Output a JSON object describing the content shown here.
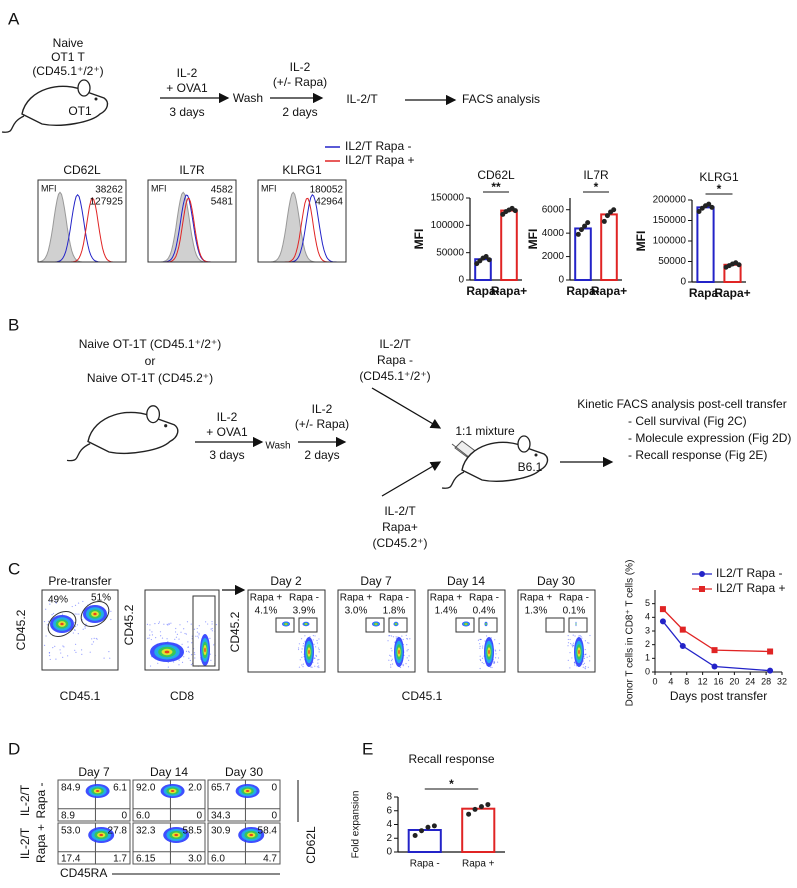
{
  "panel_labels": [
    "A",
    "B",
    "C",
    "D",
    "E"
  ],
  "a": {
    "mouse_caption": [
      "Naive",
      "OT1 T",
      "(CD45.1⁺/2⁺)"
    ],
    "mouse_name": "OT1",
    "culture": [
      "IL-2",
      "+ OVA1"
    ],
    "culture_time": "3 days",
    "wash": "Wash",
    "rest": [
      "IL-2",
      "(+/- Rapa)"
    ],
    "rest_time": "2 days",
    "product": "IL-2/T",
    "readout": "FACS analysis",
    "legend": [
      {
        "name": "IL2/T Rapa -",
        "color": "#2323c8"
      },
      {
        "name": "IL2/T Rapa +",
        "color": "#e02424"
      }
    ],
    "histograms": [
      {
        "marker": "CD62L",
        "mfi_label": "MFI",
        "mfi": [
          "38262",
          "127925"
        ]
      },
      {
        "marker": "IL7R",
        "mfi_label": "MFI",
        "mfi": [
          "4582",
          "5481"
        ]
      },
      {
        "marker": "KLRG1",
        "mfi_label": "MFI",
        "mfi": [
          "180052",
          "42964"
        ]
      }
    ]
  },
  "b": {
    "donors": [
      "Naive OT-1T (CD45.1⁺/2⁺)",
      "or",
      "Naive OT-1T (CD45.2⁺)"
    ],
    "culture": [
      "IL-2",
      "+ OVA1"
    ],
    "culture_time": "3 days",
    "wash": "Wash",
    "rest": [
      "IL-2",
      "(+/- Rapa)"
    ],
    "rest_time": "2 days",
    "group_minus": [
      "IL-2/T",
      "Rapa -",
      "(CD45.1⁺/2⁺)"
    ],
    "group_plus": [
      "IL-2/T",
      "Rapa+",
      "(CD45.2⁺)"
    ],
    "mixture": "1:1 mixture",
    "host": "B6.1",
    "analysis_title": "Kinetic FACS analysis post-cell transfer",
    "analysis_items": [
      "- Cell survival (Fig 2C)",
      "- Molecule expression (Fig 2D)",
      "- Recall response (Fig 2E)"
    ]
  },
  "c": {
    "pre_transfer": {
      "title": "Pre-transfer",
      "gates": [
        "49%",
        "51%"
      ],
      "y_label": "CD45.2",
      "x_label": "CD45.1"
    },
    "cd8_plot": {
      "y_label": "CD45.2",
      "x_label": "CD8"
    },
    "days": [
      {
        "title": "Day 2",
        "gates": [
          "4.1%",
          "3.9%"
        ]
      },
      {
        "title": "Day 7",
        "gates": [
          "3.0%",
          "1.8%"
        ]
      },
      {
        "title": "Day 14",
        "gates": [
          "1.4%",
          "0.4%"
        ]
      },
      {
        "title": "Day 30",
        "gates": [
          "1.3%",
          "0.1%"
        ]
      }
    ],
    "gate_names": [
      {
        "name": "Rapa +",
        "color": "#e02424"
      },
      {
        "name": "Rapa -",
        "color": "#2323c8"
      }
    ],
    "y_label": "CD45.2",
    "x_label": "CD45.1"
  },
  "d": {
    "days": [
      "Day 7",
      "Day 14",
      "Day 30"
    ],
    "rows": [
      {
        "label": "IL-2/T",
        "group": "Rapa -",
        "color": "#2323c8",
        "quadrants": [
          [
            "84.9",
            "6.1",
            "8.9",
            "0"
          ],
          [
            "92.0",
            "2.0",
            "6.0",
            "0"
          ],
          [
            "65.7",
            "0",
            "34.3",
            "0"
          ]
        ]
      },
      {
        "label": "IL-2/T",
        "group": "Rapa +",
        "color": "#e02424",
        "quadrants": [
          [
            "53.0",
            "27.8",
            "17.4",
            "1.7"
          ],
          [
            "32.3",
            "58.5",
            "6.15",
            "3.0"
          ],
          [
            "30.9",
            "58.4",
            "6.0",
            "4.7"
          ]
        ]
      }
    ],
    "y_label": "CD62L",
    "x_label": "CD45RA"
  },
  "chart_data": [
    {
      "type": "bar",
      "title": "CD62L",
      "y_label": "MFI",
      "categories": [
        "Rapa-",
        "Rapa+"
      ],
      "values": [
        38000,
        127000
      ],
      "points": [
        [
          30000,
          35000,
          40000,
          43000,
          37000
        ],
        [
          120000,
          125000,
          128000,
          131000,
          127000
        ]
      ],
      "colors": [
        "#2323c8",
        "#e02424"
      ],
      "ylim": [
        0,
        150000
      ],
      "yticks": [
        0,
        50000,
        100000,
        150000
      ],
      "significance": "**"
    },
    {
      "type": "bar",
      "title": "IL7R",
      "y_label": "MFI",
      "categories": [
        "Rapa-",
        "Rapa+"
      ],
      "values": [
        4400,
        5600
      ],
      "points": [
        [
          3900,
          4300,
          4600,
          4900
        ],
        [
          5000,
          5500,
          5800,
          6000
        ]
      ],
      "colors": [
        "#2323c8",
        "#e02424"
      ],
      "ylim": [
        0,
        7000
      ],
      "yticks": [
        0,
        2000,
        4000,
        6000
      ],
      "significance": "*"
    },
    {
      "type": "bar",
      "title": "KLRG1",
      "y_label": "MFI",
      "categories": [
        "Rapa-",
        "Rapa+"
      ],
      "values": [
        182000,
        42000
      ],
      "points": [
        [
          172000,
          180000,
          186000,
          190000,
          182000
        ],
        [
          36000,
          40000,
          44000,
          47000,
          42000
        ]
      ],
      "colors": [
        "#2323c8",
        "#e02424"
      ],
      "ylim": [
        0,
        200000
      ],
      "yticks": [
        0,
        50000,
        100000,
        150000,
        200000
      ],
      "significance": "*"
    },
    {
      "type": "line",
      "x_label": "Days post transfer",
      "y_label": "Donor T cells in CD8⁺ T cells (%)",
      "x": [
        2,
        7,
        15,
        29
      ],
      "xlim": [
        0,
        32
      ],
      "xticks": [
        0,
        4,
        8,
        12,
        16,
        20,
        24,
        28,
        32
      ],
      "ylim": [
        0,
        6
      ],
      "yticks": [
        0,
        1,
        2,
        3,
        4,
        5
      ],
      "series": [
        {
          "name": "IL2/T Rapa -",
          "color": "#2323c8",
          "marker": "circle",
          "values": [
            3.7,
            1.9,
            0.4,
            0.1
          ]
        },
        {
          "name": "IL2/T Rapa +",
          "color": "#e02424",
          "marker": "square",
          "values": [
            4.6,
            3.1,
            1.6,
            1.5
          ]
        }
      ]
    },
    {
      "type": "bar",
      "title": "Recall response",
      "y_label": "Fold expansion",
      "categories": [
        "Rapa -",
        "Rapa +"
      ],
      "values": [
        3.2,
        6.3
      ],
      "points": [
        [
          2.4,
          3.1,
          3.6,
          3.8
        ],
        [
          5.5,
          6.2,
          6.6,
          6.9
        ]
      ],
      "colors": [
        "#2323c8",
        "#e02424"
      ],
      "ylim": [
        0,
        8
      ],
      "yticks": [
        0,
        2,
        4,
        6,
        8
      ],
      "significance": "*"
    }
  ]
}
